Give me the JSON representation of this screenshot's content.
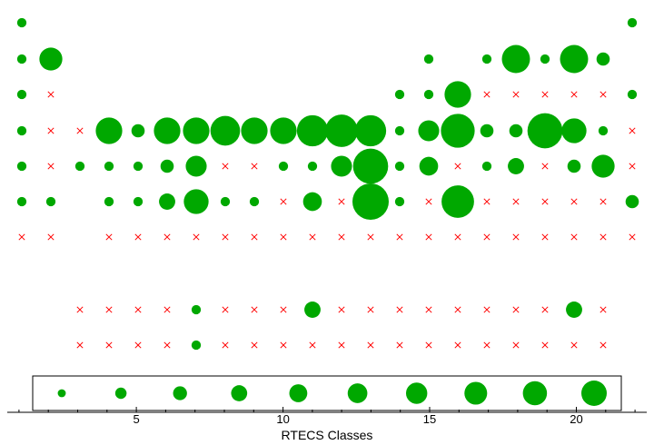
{
  "chart_data": {
    "type": "scatter",
    "subtype": "bubble-grid",
    "xlabel": "RTECS Classes",
    "xlim": [
      0.6,
      22.4
    ],
    "x_ticks": [
      5,
      10,
      15,
      20
    ],
    "x_tick_labels": [
      "5",
      "10",
      "15",
      "20"
    ],
    "columns": [
      1,
      2,
      3,
      4,
      5,
      6,
      7,
      8,
      9,
      10,
      11,
      12,
      13,
      14,
      15,
      16,
      17,
      18,
      19,
      20,
      21,
      22
    ],
    "rows": 12,
    "colors": {
      "present": "#00a800",
      "absent": "#ff0000"
    },
    "marker_legend": "Bubble size reflects value; red x marks an empty cell",
    "cells": {
      "1": [
        1,
        1,
        1,
        1,
        1,
        1,
        0,
        null,
        null,
        null
      ],
      "2": [
        null,
        6,
        0,
        0,
        0,
        1,
        0,
        null,
        null,
        null
      ],
      "3": [
        null,
        null,
        null,
        0,
        1,
        null,
        null,
        null,
        0,
        0
      ],
      "4": [
        null,
        null,
        null,
        8,
        1,
        1,
        0,
        null,
        0,
        0
      ],
      "5": [
        null,
        null,
        null,
        2,
        1,
        1,
        0,
        null,
        0,
        0
      ],
      "6": [
        null,
        null,
        null,
        8,
        2,
        3,
        0,
        null,
        0,
        0
      ],
      "7": [
        null,
        null,
        null,
        8,
        5,
        7,
        0,
        null,
        1,
        1
      ],
      "8": [
        null,
        null,
        null,
        10,
        0,
        1,
        0,
        null,
        0,
        0
      ],
      "9": [
        null,
        null,
        null,
        8,
        0,
        1,
        0,
        null,
        0,
        0
      ],
      "10": [
        null,
        null,
        null,
        8,
        1,
        0,
        0,
        null,
        0,
        0
      ],
      "11": [
        null,
        null,
        null,
        11,
        1,
        4,
        0,
        null,
        3,
        0
      ],
      "12": [
        null,
        null,
        null,
        12,
        5,
        0,
        0,
        null,
        0,
        0
      ],
      "13": [
        null,
        null,
        null,
        11,
        14,
        15,
        0,
        null,
        0,
        0
      ],
      "14": [
        null,
        null,
        1,
        1,
        1,
        1,
        0,
        null,
        0,
        0
      ],
      "15": [
        null,
        1,
        1,
        5,
        4,
        0,
        0,
        null,
        0,
        0
      ],
      "16": [
        null,
        null,
        8,
        13,
        0,
        12,
        0,
        null,
        0,
        0
      ],
      "17": [
        null,
        1,
        0,
        2,
        1,
        0,
        0,
        null,
        0,
        0
      ],
      "18": [
        null,
        9,
        0,
        2,
        3,
        0,
        0,
        null,
        0,
        0
      ],
      "19": [
        null,
        1,
        0,
        14,
        0,
        0,
        0,
        null,
        0,
        0
      ],
      "20": [
        null,
        9,
        0,
        7,
        2,
        0,
        0,
        null,
        3,
        0
      ],
      "21": [
        null,
        2,
        0,
        1,
        6,
        0,
        0,
        null,
        0,
        0
      ],
      "22": [
        1,
        null,
        1,
        0,
        0,
        2,
        0,
        null,
        null,
        null
      ]
    },
    "legend_sizes": [
      1,
      2,
      3,
      4,
      5,
      6,
      7,
      8,
      9,
      10
    ]
  }
}
